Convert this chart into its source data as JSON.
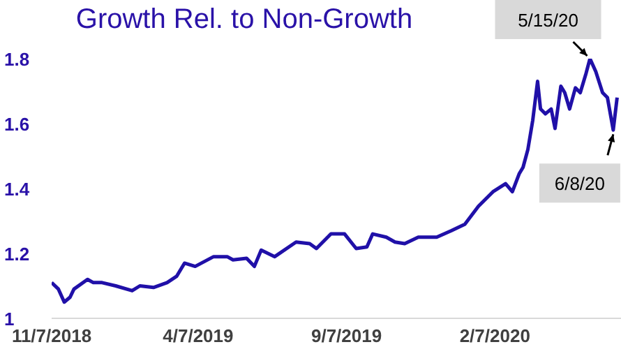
{
  "chart_data": {
    "type": "line",
    "title": "Growth Rel. to Non-Growth",
    "x": [
      "2018-11-07",
      "2018-11-14",
      "2018-11-20",
      "2018-11-26",
      "2018-11-30",
      "2018-12-14",
      "2018-12-20",
      "2018-12-29",
      "2019-01-12",
      "2019-01-29",
      "2019-02-06",
      "2019-02-20",
      "2019-03-06",
      "2019-03-16",
      "2019-03-24",
      "2019-04-04",
      "2019-04-23",
      "2019-05-07",
      "2019-05-13",
      "2019-05-27",
      "2019-06-04",
      "2019-06-11",
      "2019-06-25",
      "2019-07-17",
      "2019-07-31",
      "2019-08-07",
      "2019-08-22",
      "2019-09-05",
      "2019-09-17",
      "2019-09-28",
      "2019-10-04",
      "2019-10-18",
      "2019-10-27",
      "2019-11-06",
      "2019-11-20",
      "2019-12-09",
      "2019-12-24",
      "2020-01-07",
      "2020-01-21",
      "2020-02-05",
      "2020-02-18",
      "2020-02-25",
      "2020-03-03",
      "2020-03-07",
      "2020-03-12",
      "2020-03-17",
      "2020-03-22",
      "2020-03-25",
      "2020-03-30",
      "2020-04-05",
      "2020-04-09",
      "2020-04-15",
      "2020-04-19",
      "2020-04-24",
      "2020-04-30",
      "2020-05-05",
      "2020-05-11",
      "2020-05-15",
      "2020-05-21",
      "2020-05-28",
      "2020-06-02",
      "2020-06-08",
      "2020-06-12"
    ],
    "series": [
      {
        "color": "#2010a8",
        "values": [
          1.11,
          1.09,
          1.05,
          1.065,
          1.09,
          1.12,
          1.11,
          1.11,
          1.1,
          1.085,
          1.1,
          1.095,
          1.11,
          1.13,
          1.17,
          1.16,
          1.19,
          1.19,
          1.18,
          1.185,
          1.16,
          1.21,
          1.19,
          1.235,
          1.23,
          1.215,
          1.26,
          1.26,
          1.215,
          1.22,
          1.26,
          1.25,
          1.235,
          1.23,
          1.25,
          1.25,
          1.27,
          1.29,
          1.345,
          1.39,
          1.415,
          1.39,
          1.445,
          1.465,
          1.52,
          1.61,
          1.73,
          1.645,
          1.63,
          1.645,
          1.585,
          1.715,
          1.695,
          1.645,
          1.71,
          1.695,
          1.755,
          1.8,
          1.76,
          1.695,
          1.68,
          1.58,
          1.68
        ]
      }
    ],
    "xlim": [
      "2018-11-07",
      "2020-06-16"
    ],
    "xticks": [
      {
        "value": "2018-11-07",
        "label": "11/7/2018"
      },
      {
        "value": "2019-04-07",
        "label": "4/7/2019"
      },
      {
        "value": "2019-09-07",
        "label": "9/7/2019"
      },
      {
        "value": "2020-02-07",
        "label": "2/7/2020"
      }
    ],
    "ylim": [
      1,
      1.8
    ],
    "yticks": [
      1,
      1.2,
      1.4,
      1.6,
      1.8
    ],
    "annotations": [
      {
        "text": "5/15/20",
        "x": "2020-05-15",
        "y": 1.8
      },
      {
        "text": "6/8/20",
        "x": "2020-06-08",
        "y": 1.58
      }
    ]
  }
}
